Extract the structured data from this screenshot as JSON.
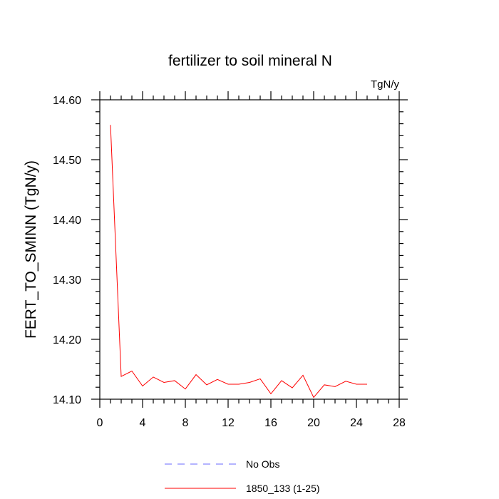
{
  "chart_data": {
    "type": "line",
    "title": "fertilizer to soil mineral N",
    "units": "TgN/y",
    "ylabel": "FERT_TO_SMINN  (TgN/y)",
    "xlabel": "",
    "xlim": [
      0,
      28
    ],
    "ylim": [
      14.1,
      14.6
    ],
    "x_ticks": [
      0,
      4,
      8,
      12,
      16,
      20,
      24,
      28
    ],
    "x_tick_labels": [
      "0",
      "4",
      "8",
      "12",
      "16",
      "20",
      "24",
      "28"
    ],
    "y_ticks": [
      14.1,
      14.2,
      14.3,
      14.4,
      14.5,
      14.6
    ],
    "y_tick_labels": [
      "14.10",
      "14.20",
      "14.30",
      "14.40",
      "14.50",
      "14.60"
    ],
    "series": [
      {
        "name": "No Obs",
        "color": "#6a6aff",
        "style": "dashed",
        "x": [],
        "values": []
      },
      {
        "name": "1850_133 (1-25)",
        "color": "#ff0000",
        "style": "solid",
        "x": [
          1,
          2,
          3,
          4,
          5,
          6,
          7,
          8,
          9,
          10,
          11,
          12,
          13,
          14,
          15,
          16,
          17,
          18,
          19,
          20,
          21,
          22,
          23,
          24,
          25
        ],
        "values": [
          14.558,
          14.138,
          14.147,
          14.122,
          14.137,
          14.128,
          14.131,
          14.117,
          14.141,
          14.124,
          14.133,
          14.125,
          14.125,
          14.128,
          14.134,
          14.109,
          14.131,
          14.119,
          14.14,
          14.103,
          14.124,
          14.121,
          14.13,
          14.125,
          14.125
        ]
      }
    ]
  }
}
